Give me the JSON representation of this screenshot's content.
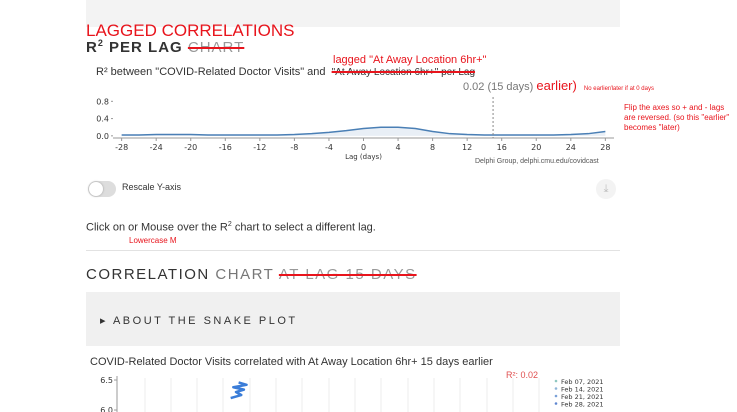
{
  "annotations": {
    "top_title": "LAGGED CORRELATIONS",
    "subtitle_note": "lagged \"At Away Location 6hr+\"",
    "earlier": "earlier)",
    "zero_note": "No earlier/later if at 0 days",
    "flip_note": "Flip the axes so + and - lags are reversed. (so this \"earlier\" becomes \"later)",
    "lowercase_note": "Lowercase M"
  },
  "lag_section": {
    "title_main": "R",
    "title_sup": "2",
    "title_rest": "PER LAG",
    "title_struck": "CHART",
    "desc_start": "R² between \"COVID-Related Doctor Visits\" and",
    "desc_struck": "\"At Away Location 6hr+\" per Lag",
    "selected_label": "0.02 (15 days)",
    "chart": {
      "type": "line",
      "x_label": "Lag (days)",
      "x": [
        -28,
        -26,
        -24,
        -22,
        -20,
        -18,
        -16,
        -14,
        -12,
        -10,
        -8,
        -6,
        -4,
        -2,
        0,
        2,
        4,
        6,
        8,
        10,
        12,
        14,
        16,
        18,
        20,
        22,
        24,
        26,
        28
      ],
      "values": [
        0.02,
        0.02,
        0.03,
        0.03,
        0.03,
        0.02,
        0.02,
        0.02,
        0.02,
        0.02,
        0.03,
        0.05,
        0.08,
        0.12,
        0.17,
        0.2,
        0.2,
        0.17,
        0.1,
        0.05,
        0.03,
        0.02,
        0.02,
        0.02,
        0.02,
        0.02,
        0.03,
        0.05,
        0.1
      ],
      "selected_lag": 15,
      "xlim": [
        -29,
        29
      ],
      "ylim": [
        -0.05,
        0.9
      ],
      "xticks": [
        -28,
        -24,
        -20,
        -16,
        -12,
        -8,
        -4,
        0,
        4,
        8,
        12,
        16,
        20,
        24,
        28
      ],
      "yticks": [
        {
          "value": 0.8,
          "label": "0.8"
        },
        {
          "value": 0.4,
          "label": "0.4"
        },
        {
          "value": 0,
          "label": "0.0"
        }
      ],
      "color": "#4a7fb5"
    },
    "credit": "Delphi Group, delphi.cmu.edu/covidcast",
    "toggle_label": "Rescale Y-axis",
    "hint_start": "Click on or Mouse over the R",
    "hint_sup": "2",
    "hint_end": "chart to select a different lag."
  },
  "correlation_section": {
    "title_main": "CORRELATION",
    "title_grey": "CHART",
    "title_struck": "AT LAG 15 DAYS",
    "about": "▸ ABOUT THE SNAKE PLOT",
    "chart_title": "COVID-Related Doctor Visits correlated with At Away Location 6hr+ 15 days earlier",
    "r2_label": "R²: 0.02",
    "chart": {
      "type": "line",
      "x": [
        4.6,
        4.9,
        4.4,
        4.8,
        4.5,
        4.7,
        4.3
      ],
      "values": [
        6.46,
        6.42,
        6.38,
        6.34,
        6.3,
        6.25,
        6.2
      ],
      "xlim": [
        0,
        16
      ],
      "ylim": [
        5.967,
        6.567
      ],
      "yticks": [
        {
          "value": 6.5,
          "label": "6.5"
        },
        {
          "value": 6,
          "label": "6.0"
        }
      ],
      "color": "#3b7dd8"
    },
    "legend": [
      "Feb 07, 2021",
      "Feb 14, 2021",
      "Feb 21, 2021",
      "Feb 28, 2021"
    ]
  }
}
